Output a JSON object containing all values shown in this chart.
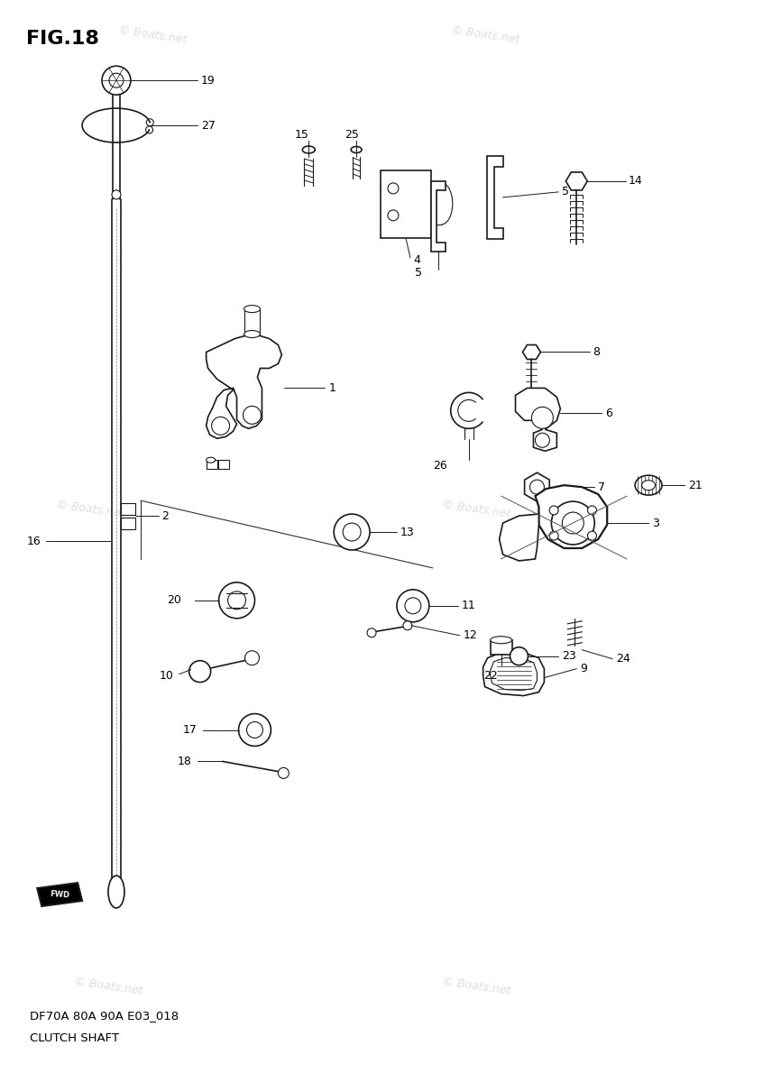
{
  "title": "FIG.18",
  "subtitle_line1": "DF70A 80A 90A E03_018",
  "subtitle_line2": "CLUTCH SHAFT",
  "watermark": "© Boats.net",
  "watermark_color": "#d0d0d0",
  "background_color": "#ffffff",
  "line_color": "#1a1a1a",
  "text_color": "#000000",
  "fig_width": 8.46,
  "fig_height": 12.0,
  "dpi": 100
}
